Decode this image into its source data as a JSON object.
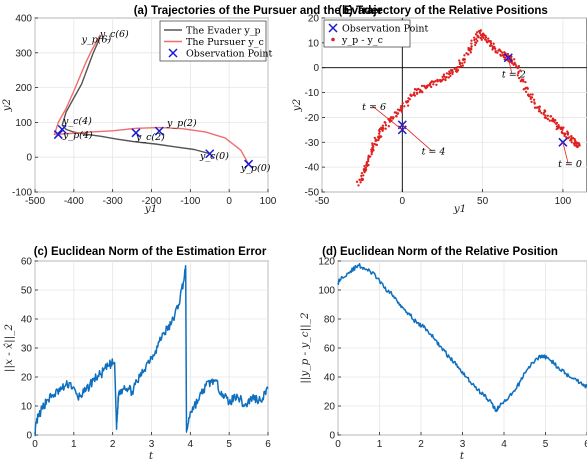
{
  "colors": {
    "evader": "#555555",
    "pursuer": "#f26d6d",
    "obs": "#1a1ad4",
    "rel": "#e02020",
    "norm": "#0f6fbf",
    "grid": "#e6e6e6",
    "annot_line": "#e02020"
  },
  "chart_data": [
    {
      "id": "a",
      "type": "line",
      "title": "(a) Trajectories of the Pursuer and the Evader",
      "xlabel": "y1",
      "ylabel": "y2",
      "xlim": [
        -500,
        100
      ],
      "ylim": [
        -100,
        400
      ],
      "xticks": [
        "-500",
        "-400",
        "-300",
        "-200",
        "-100",
        "0",
        "100"
      ],
      "yticks": [
        "-100",
        "0",
        "100",
        "200",
        "300",
        "400"
      ],
      "legend": {
        "position": "top-right",
        "entries": [
          "The Evader y_p",
          "The Pursuer y_c",
          "Observation Point"
        ]
      },
      "series": [
        {
          "name": "The Evader y_p",
          "color": "#555555",
          "points": [
            [
              -50,
              10
            ],
            [
              -90,
              22
            ],
            [
              -140,
              30
            ],
            [
              -190,
              38
            ],
            [
              -240,
              44
            ],
            [
              -290,
              52
            ],
            [
              -330,
              60
            ],
            [
              -370,
              66
            ],
            [
              -400,
              72
            ],
            [
              -420,
              80
            ],
            [
              -430,
              92
            ],
            [
              -420,
              130
            ],
            [
              -400,
              170
            ],
            [
              -380,
              210
            ],
            [
              -365,
              255
            ],
            [
              -350,
              300
            ],
            [
              -338,
              330
            ],
            [
              -332,
              350
            ]
          ]
        },
        {
          "name": "The Pursuer y_c",
          "color": "#f26d6d",
          "points": [
            [
              50,
              -20
            ],
            [
              30,
              20
            ],
            [
              -10,
              55
            ],
            [
              -60,
              72
            ],
            [
              -120,
              82
            ],
            [
              -180,
              85
            ],
            [
              -240,
              83
            ],
            [
              -300,
              76
            ],
            [
              -360,
              72
            ],
            [
              -410,
              68
            ],
            [
              -450,
              65
            ],
            [
              -440,
              100
            ],
            [
              -420,
              140
            ],
            [
              -400,
              190
            ],
            [
              -385,
              230
            ],
            [
              -370,
              270
            ],
            [
              -355,
              305
            ],
            [
              -340,
              335
            ],
            [
              -332,
              352
            ]
          ]
        }
      ],
      "observation_points": [
        [
          -50,
          10
        ],
        [
          50,
          -20
        ],
        [
          -240,
          70
        ],
        [
          -180,
          75
        ],
        [
          -430,
          80
        ],
        [
          -440,
          65
        ]
      ],
      "annotations": [
        {
          "text": "y_c(6)",
          "x": -333,
          "y": 345
        },
        {
          "text": "y_p(6)",
          "x": -380,
          "y": 330
        },
        {
          "text": "y_c(4)",
          "x": -428,
          "y": 95
        },
        {
          "text": "y_p(4)",
          "x": -428,
          "y": 55
        },
        {
          "text": "y_c(2)",
          "x": -240,
          "y": 50
        },
        {
          "text": "y_p(2)",
          "x": -160,
          "y": 90
        },
        {
          "text": "y_c(0)",
          "x": -75,
          "y": -5
        },
        {
          "text": "y_p(0)",
          "x": 30,
          "y": -40
        }
      ]
    },
    {
      "id": "b",
      "type": "scatter",
      "title": "(b) Trajectory of the Relative Positions",
      "xlabel": "y1",
      "ylabel": "y2",
      "xlim": [
        -50,
        115
      ],
      "ylim": [
        -50,
        20
      ],
      "xticks": [
        "-50",
        "0",
        "50",
        "100"
      ],
      "yticks": [
        "-50",
        "-40",
        "-30",
        "-20",
        "-10",
        "0",
        "10",
        "20"
      ],
      "legend": {
        "position": "top-left",
        "entries": [
          "Observation Point",
          "y_p - y_c"
        ]
      },
      "path_points": [
        [
          -27,
          -47
        ],
        [
          -24,
          -42
        ],
        [
          -22,
          -38
        ],
        [
          -19,
          -33
        ],
        [
          -16,
          -29
        ],
        [
          -13,
          -26
        ],
        [
          -9,
          -22
        ],
        [
          -5,
          -19
        ],
        [
          0,
          -16
        ],
        [
          5,
          -12
        ],
        [
          10,
          -9
        ],
        [
          15,
          -8
        ],
        [
          20,
          -6
        ],
        [
          26,
          -4
        ],
        [
          30,
          -2
        ],
        [
          34,
          0
        ],
        [
          38,
          3
        ],
        [
          42,
          7
        ],
        [
          45,
          11
        ],
        [
          48,
          14
        ],
        [
          51,
          12
        ],
        [
          55,
          10
        ],
        [
          59,
          7
        ],
        [
          63,
          5
        ],
        [
          66,
          4
        ],
        [
          70,
          2
        ],
        [
          74,
          -4
        ],
        [
          78,
          -10
        ],
        [
          83,
          -15
        ],
        [
          88,
          -18
        ],
        [
          93,
          -21
        ],
        [
          97,
          -24
        ],
        [
          101,
          -26
        ],
        [
          105,
          -28
        ],
        [
          108,
          -30
        ],
        [
          110,
          -32
        ]
      ],
      "observation_points": [
        [
          100,
          -30
        ],
        [
          66,
          4
        ],
        [
          0,
          -23
        ],
        [
          0,
          -25
        ]
      ],
      "annotations": [
        {
          "text": "t = 0",
          "x": 97,
          "y": -40
        },
        {
          "text": "t = 2",
          "x": 62,
          "y": -4
        },
        {
          "text": "t = 4",
          "x": 12,
          "y": -35
        },
        {
          "text": "t = 6",
          "x": -25,
          "y": -17
        }
      ],
      "crosshair": {
        "x": 0,
        "y": 0
      }
    },
    {
      "id": "c",
      "type": "line",
      "title": "(c) Euclidean Norm of the Estimation Error",
      "xlabel": "t",
      "ylabel": "||x - x̂||_2",
      "xlim": [
        0,
        6
      ],
      "ylim": [
        0,
        60
      ],
      "xticks": [
        "0",
        "1",
        "2",
        "3",
        "4",
        "5",
        "6"
      ],
      "yticks": [
        "0",
        "10",
        "20",
        "30",
        "40",
        "50",
        "60"
      ],
      "x": [
        0,
        0.05,
        0.15,
        0.3,
        0.5,
        0.7,
        0.9,
        1.1,
        1.3,
        1.5,
        1.7,
        1.9,
        2.05,
        2.1,
        2.15,
        2.3,
        2.5,
        2.7,
        2.9,
        3.1,
        3.3,
        3.5,
        3.7,
        3.85,
        3.88,
        3.9,
        4.0,
        4.2,
        4.4,
        4.6,
        4.8,
        5.0,
        5.2,
        5.4,
        5.6,
        5.8,
        6.0
      ],
      "y": [
        1,
        5,
        8,
        12,
        14,
        16,
        18,
        13,
        15,
        19,
        21,
        24,
        25,
        2,
        14,
        17,
        15,
        20,
        25,
        29,
        35,
        38,
        45,
        55,
        57,
        1,
        8,
        12,
        17,
        19,
        15,
        11,
        14,
        10,
        13,
        12,
        16
      ]
    },
    {
      "id": "d",
      "type": "line",
      "title": "(d) Euclidean Norm of the Relative Position",
      "xlabel": "t",
      "ylabel": "||y_p - y_c||_2",
      "xlim": [
        0,
        6
      ],
      "ylim": [
        0,
        120
      ],
      "xticks": [
        "0",
        "1",
        "2",
        "3",
        "4",
        "5",
        "6"
      ],
      "yticks": [
        "0",
        "20",
        "40",
        "60",
        "80",
        "100",
        "120"
      ],
      "x": [
        0,
        0.1,
        0.3,
        0.5,
        0.7,
        0.9,
        1.1,
        1.3,
        1.5,
        1.7,
        1.9,
        2.1,
        2.3,
        2.5,
        2.7,
        2.9,
        3.1,
        3.3,
        3.5,
        3.7,
        3.8,
        3.9,
        4.1,
        4.3,
        4.5,
        4.7,
        4.9,
        5.1,
        5.3,
        5.5,
        5.7,
        5.9,
        6.0
      ],
      "y": [
        105,
        109,
        113,
        117,
        114,
        110,
        102,
        97,
        90,
        84,
        77,
        74,
        67,
        60,
        53,
        47,
        40,
        33,
        28,
        22,
        17,
        20,
        25,
        32,
        43,
        50,
        55,
        52,
        47,
        42,
        39,
        35,
        33
      ]
    }
  ]
}
